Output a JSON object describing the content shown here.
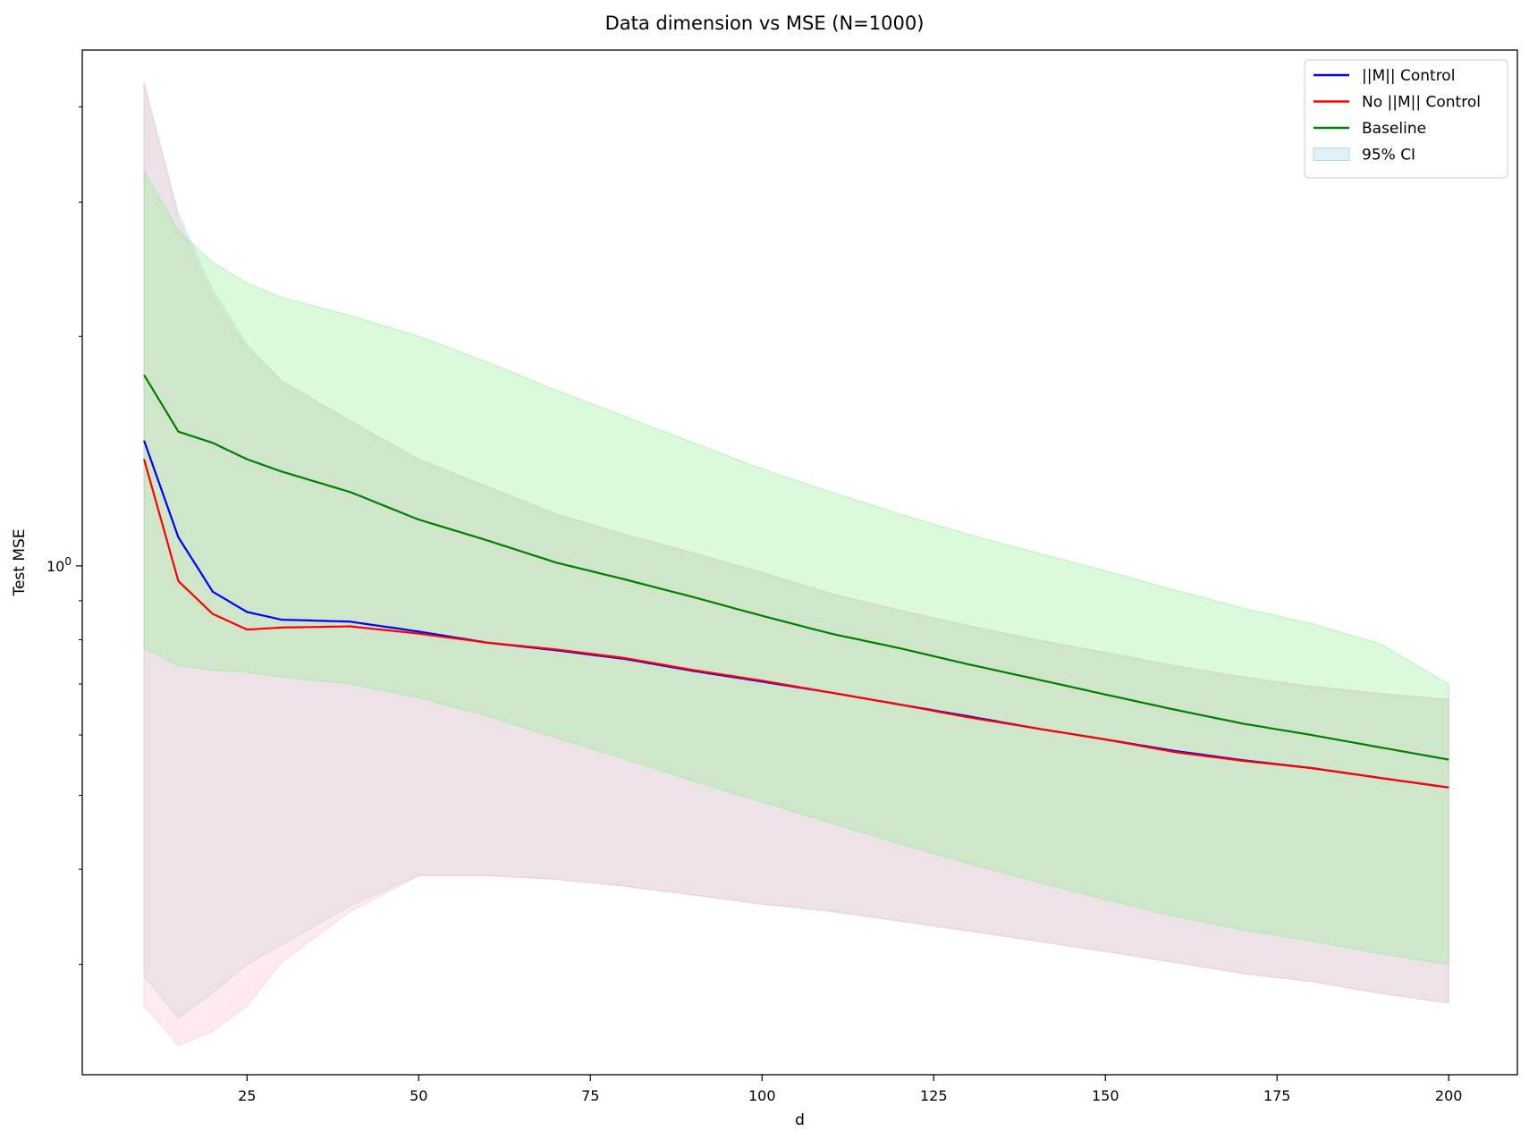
{
  "chart_data": {
    "type": "line",
    "title": "Data dimension vs MSE (N=1000)",
    "xlabel": "d",
    "ylabel": "Test MSE",
    "xlim": [
      1,
      210
    ],
    "ylim": [
      0.215,
      4.75
    ],
    "yscale": "log",
    "grid": false,
    "legend_position": "top-right",
    "x_ticks": [
      25,
      50,
      75,
      100,
      125,
      150,
      175,
      200
    ],
    "x_tick_labels": [
      "25",
      "50",
      "75",
      "100",
      "125",
      "150",
      "175",
      "200"
    ],
    "y_ticks": [
      1.0
    ],
    "y_tick_labels": [
      "10^0"
    ],
    "x": [
      10,
      15,
      20,
      25,
      30,
      40,
      50,
      60,
      70,
      80,
      90,
      100,
      110,
      120,
      130,
      140,
      150,
      160,
      170,
      180,
      190,
      200
    ],
    "series": [
      {
        "name": "||M|| Control",
        "color": "#0000ff",
        "values": [
          1.46,
          1.09,
          0.925,
          0.87,
          0.85,
          0.845,
          0.82,
          0.793,
          0.775,
          0.755,
          0.728,
          0.705,
          0.682,
          0.658,
          0.635,
          0.612,
          0.592,
          0.572,
          0.556,
          0.543,
          0.527,
          0.512
        ]
      },
      {
        "name": "No ||M|| Control",
        "color": "#ff0000",
        "values": [
          1.38,
          0.955,
          0.865,
          0.825,
          0.83,
          0.833,
          0.815,
          0.793,
          0.777,
          0.757,
          0.73,
          0.707,
          0.682,
          0.658,
          0.633,
          0.612,
          0.592,
          0.57,
          0.555,
          0.543,
          0.527,
          0.512
        ]
      },
      {
        "name": "Baseline",
        "color": "#008000",
        "values": [
          1.78,
          1.5,
          1.45,
          1.38,
          1.33,
          1.25,
          1.15,
          1.08,
          1.01,
          0.96,
          0.91,
          0.86,
          0.815,
          0.78,
          0.743,
          0.71,
          0.678,
          0.648,
          0.621,
          0.6,
          0.578,
          0.557
        ]
      }
    ],
    "ci_bands": [
      {
        "series": "||M|| Control",
        "color": "#add8e6",
        "upper": [
          4.3,
          2.9,
          2.3,
          1.95,
          1.75,
          1.55,
          1.38,
          1.27,
          1.17,
          1.1,
          1.04,
          0.98,
          0.92,
          0.875,
          0.835,
          0.8,
          0.77,
          0.74,
          0.715,
          0.695,
          0.68,
          0.668
        ],
        "lower": [
          0.29,
          0.255,
          0.275,
          0.3,
          0.318,
          0.358,
          0.393,
          0.393,
          0.388,
          0.38,
          0.37,
          0.36,
          0.353,
          0.342,
          0.332,
          0.322,
          0.312,
          0.302,
          0.292,
          0.285,
          0.275,
          0.267
        ]
      },
      {
        "series": "No ||M|| Control",
        "color": "#ffc0cb",
        "upper": [
          4.3,
          2.85,
          2.25,
          1.93,
          1.75,
          1.55,
          1.38,
          1.27,
          1.17,
          1.1,
          1.04,
          0.98,
          0.92,
          0.875,
          0.835,
          0.8,
          0.77,
          0.74,
          0.715,
          0.695,
          0.68,
          0.668
        ],
        "lower": [
          0.265,
          0.235,
          0.245,
          0.265,
          0.302,
          0.352,
          0.392,
          0.392,
          0.388,
          0.38,
          0.37,
          0.36,
          0.352,
          0.342,
          0.332,
          0.322,
          0.312,
          0.302,
          0.292,
          0.285,
          0.275,
          0.267
        ]
      },
      {
        "series": "Baseline",
        "color": "#90ee90",
        "upper": [
          3.3,
          2.75,
          2.5,
          2.35,
          2.25,
          2.13,
          2.0,
          1.85,
          1.7,
          1.57,
          1.45,
          1.34,
          1.25,
          1.17,
          1.1,
          1.04,
          0.985,
          0.93,
          0.88,
          0.84,
          0.79,
          0.7
        ],
        "lower": [
          0.78,
          0.74,
          0.73,
          0.725,
          0.715,
          0.7,
          0.672,
          0.635,
          0.595,
          0.558,
          0.522,
          0.49,
          0.46,
          0.432,
          0.407,
          0.385,
          0.365,
          0.347,
          0.333,
          0.322,
          0.31,
          0.3
        ]
      }
    ],
    "legend": {
      "entries": [
        {
          "label": "||M|| Control",
          "color": "#0000ff",
          "kind": "line"
        },
        {
          "label": "No ||M|| Control",
          "color": "#ff0000",
          "kind": "line"
        },
        {
          "label": "Baseline",
          "color": "#008000",
          "kind": "line"
        },
        {
          "label": "95% CI",
          "color": "#add8e6",
          "kind": "patch"
        }
      ]
    }
  }
}
